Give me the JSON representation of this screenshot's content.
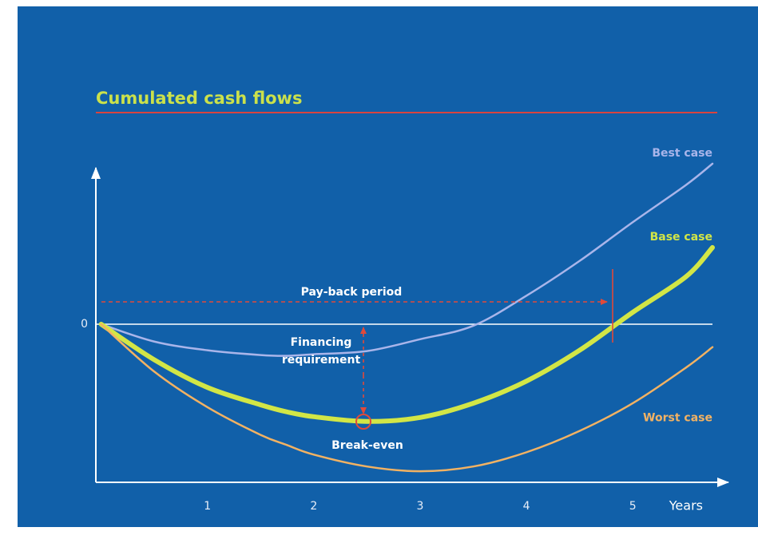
{
  "chart_data": {
    "type": "line",
    "title": "Cumulated cash flows",
    "xlabel": "Years",
    "x": [
      0,
      0.5,
      1,
      1.5,
      1.75,
      2,
      2.5,
      3,
      3.5,
      4,
      4.5,
      5,
      5.5,
      5.75
    ],
    "series": [
      {
        "name": "Best case",
        "color": "#a9b5ea",
        "values": [
          0,
          -0.22,
          -0.33,
          -0.39,
          -0.4,
          -0.38,
          -0.34,
          -0.19,
          -0.02,
          0.36,
          0.8,
          1.29,
          1.76,
          2.03
        ]
      },
      {
        "name": "Base case",
        "color": "#d2e646",
        "values": [
          0,
          -0.45,
          -0.8,
          -1.02,
          -1.11,
          -1.17,
          -1.23,
          -1.18,
          -1.0,
          -0.72,
          -0.33,
          0.15,
          0.6,
          0.97
        ]
      },
      {
        "name": "Worst case",
        "color": "#f2b263",
        "values": [
          0,
          -0.6,
          -1.05,
          -1.4,
          -1.53,
          -1.65,
          -1.8,
          -1.86,
          -1.8,
          -1.62,
          -1.35,
          -1.0,
          -0.55,
          -0.29
        ]
      }
    ],
    "xlim": [
      -0.05,
      5.75
    ],
    "xticks": [
      1,
      2,
      3,
      4,
      5
    ],
    "ylim": [
      -2,
      2.05
    ],
    "yticks": [
      0
    ],
    "grid": true,
    "annotations": {
      "payback": "Pay-back period",
      "financing_1": "Financing",
      "financing_2": "requirement",
      "break_even": "Break-even"
    }
  }
}
